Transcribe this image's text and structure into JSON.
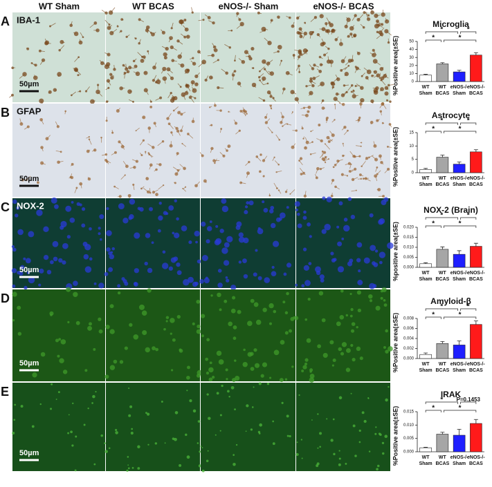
{
  "figure": {
    "columns": [
      "WT Sham",
      "WT BCAS",
      "eNOS-/- Sham",
      "eNOS-/- BCAS"
    ],
    "rows": [
      {
        "letter": "A",
        "stain": "IBA-1",
        "scale": "50µm"
      },
      {
        "letter": "B",
        "stain": "GFAP",
        "scale": "50µm"
      },
      {
        "letter": "C",
        "stain": "NOX-2",
        "scale": "50µm"
      },
      {
        "letter": "D",
        "scale": "50µm"
      },
      {
        "letter": "E",
        "scale": "50µm"
      }
    ]
  },
  "chart_data": [
    {
      "type": "bar",
      "title": "Microglia",
      "y_label": "%Positive area(±SE)",
      "categories": [
        [
          "WT",
          "Sham"
        ],
        [
          "WT",
          "BCAS"
        ],
        [
          "eNOS-/-",
          "Sham"
        ],
        [
          "eNOS-/-",
          "BCAS"
        ]
      ],
      "values": [
        8,
        22,
        12,
        33
      ],
      "errors": [
        1,
        1.5,
        2,
        3
      ],
      "colors": [
        "#ffffff",
        "#a6a6a6",
        "#1f1fff",
        "#ff1a1a"
      ],
      "ylim": [
        0,
        50
      ],
      "yticks": [
        0,
        10,
        20,
        30,
        40,
        50
      ],
      "comparisons": [
        {
          "pair": [
            0,
            2
          ],
          "label": "*"
        },
        {
          "pair": [
            2,
            3
          ],
          "label": "*"
        },
        {
          "pair": [
            0,
            1
          ],
          "label": "*"
        },
        {
          "pair": [
            1,
            3
          ],
          "label": "*"
        }
      ]
    },
    {
      "type": "bar",
      "title": "Astrocyte",
      "y_label": "%Positive area(±SE)",
      "categories": [
        [
          "WT",
          "Sham"
        ],
        [
          "WT",
          "BCAS"
        ],
        [
          "eNOS-/-",
          "Sham"
        ],
        [
          "eNOS-/-",
          "BCAS"
        ]
      ],
      "values": [
        1.2,
        5.8,
        3.2,
        7.8
      ],
      "errors": [
        0.4,
        0.8,
        0.8,
        0.8
      ],
      "colors": [
        "#ffffff",
        "#a6a6a6",
        "#1f1fff",
        "#ff1a1a"
      ],
      "ylim": [
        0,
        15
      ],
      "yticks": [
        0,
        5,
        10,
        15
      ],
      "comparisons": [
        {
          "pair": [
            0,
            2
          ],
          "label": "*"
        },
        {
          "pair": [
            2,
            3
          ],
          "label": "*"
        },
        {
          "pair": [
            0,
            1
          ],
          "label": "*"
        },
        {
          "pair": [
            1,
            3
          ],
          "label": "*"
        }
      ]
    },
    {
      "type": "bar",
      "title": "NOX-2 (Brain)",
      "y_label": "%positive area(±SE)",
      "categories": [
        [
          "WT",
          "Sham"
        ],
        [
          "WT",
          "BCAS"
        ],
        [
          "eNOS-/-",
          "Sham"
        ],
        [
          "eNOS-/-",
          "BCAS"
        ]
      ],
      "values": [
        0.0018,
        0.009,
        0.0065,
        0.0105
      ],
      "errors": [
        0.0005,
        0.0012,
        0.0018,
        0.0015
      ],
      "colors": [
        "#ffffff",
        "#a6a6a6",
        "#1f1fff",
        "#ff1a1a"
      ],
      "ylim": [
        0,
        0.02
      ],
      "yticks": [
        {
          "value": 0,
          "label": "0.000"
        },
        {
          "value": 0.005,
          "label": "0.005"
        },
        {
          "value": 0.01,
          "label": "0.010"
        },
        {
          "value": 0.015,
          "label": "0.015"
        },
        {
          "value": 0.02,
          "label": "0.020"
        }
      ],
      "comparisons": [
        {
          "pair": [
            0,
            2
          ],
          "label": "*"
        },
        {
          "pair": [
            2,
            3
          ],
          "label": "*"
        },
        {
          "pair": [
            0,
            1
          ],
          "label": "*"
        },
        {
          "pair": [
            1,
            3
          ],
          "label": "*"
        }
      ]
    },
    {
      "type": "bar",
      "title": "Amyloid-β",
      "y_label": "%Positive area(±SE)",
      "categories": [
        [
          "WT",
          "Sham"
        ],
        [
          "WT",
          "BCAS"
        ],
        [
          "eNOS-/-",
          "Sham"
        ],
        [
          "eNOS-/-",
          "BCAS"
        ]
      ],
      "values": [
        0.0008,
        0.003,
        0.0027,
        0.0068
      ],
      "errors": [
        0.0003,
        0.0004,
        0.0008,
        0.0007
      ],
      "colors": [
        "#ffffff",
        "#a6a6a6",
        "#1f1fff",
        "#ff1a1a"
      ],
      "ylim": [
        0,
        0.008
      ],
      "yticks": [
        {
          "value": 0,
          "label": "0.000"
        },
        {
          "value": 0.002,
          "label": "0.002"
        },
        {
          "value": 0.004,
          "label": "0.004"
        },
        {
          "value": 0.006,
          "label": "0.006"
        },
        {
          "value": 0.008,
          "label": "0.008"
        }
      ],
      "comparisons": [
        {
          "pair": [
            0,
            2
          ],
          "label": "*"
        },
        {
          "pair": [
            2,
            3
          ],
          "label": "*"
        },
        {
          "pair": [
            0,
            1
          ],
          "label": "*"
        },
        {
          "pair": [
            1,
            3
          ],
          "label": "*"
        }
      ]
    },
    {
      "type": "bar",
      "title": "IRAK",
      "y_label": "%Positive area(±SE)",
      "categories": [
        [
          "WT",
          "Sham"
        ],
        [
          "WT",
          "BCAS"
        ],
        [
          "eNOS-/-",
          "Sham"
        ],
        [
          "eNOS-/-",
          "BCAS"
        ]
      ],
      "values": [
        0.0015,
        0.0066,
        0.0062,
        0.0106
      ],
      "errors": [
        0.0002,
        0.0007,
        0.0022,
        0.0015
      ],
      "colors": [
        "#ffffff",
        "#a6a6a6",
        "#1f1fff",
        "#ff1a1a"
      ],
      "ylim": [
        0,
        0.015
      ],
      "yticks": [
        {
          "value": 0,
          "label": "0.000"
        },
        {
          "value": 0.005,
          "label": "0.005"
        },
        {
          "value": 0.01,
          "label": "0.010"
        },
        {
          "value": 0.015,
          "label": "0.015"
        }
      ],
      "comparisons": [
        {
          "pair": [
            0,
            2
          ],
          "label": "*"
        },
        {
          "pair": [
            2,
            3
          ],
          "label": "P=0.1453"
        },
        {
          "pair": [
            0,
            1
          ],
          "label": "*"
        },
        {
          "pair": [
            1,
            3
          ],
          "label": "*"
        }
      ]
    }
  ]
}
